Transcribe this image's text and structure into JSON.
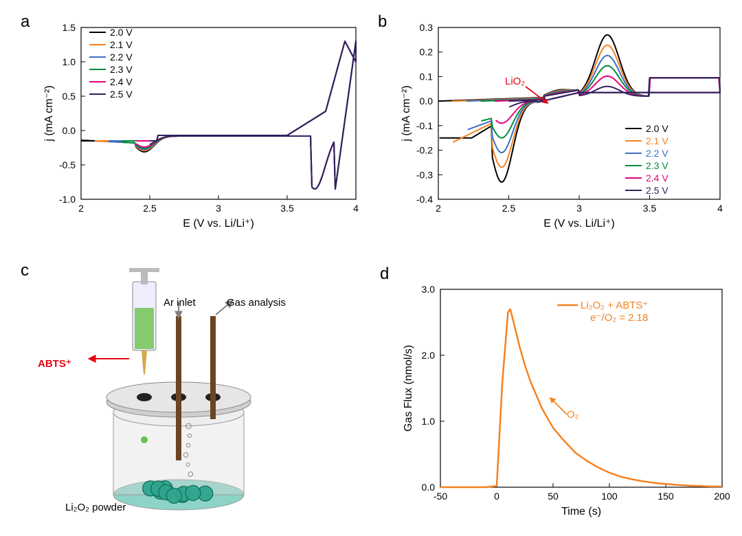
{
  "panelA": {
    "label": "a",
    "xlabel": "E (V vs. Li/Li⁺)",
    "ylabel": "j (mA cm⁻²)",
    "xlim": [
      2.0,
      4.0
    ],
    "ylim": [
      -1.0,
      1.5
    ],
    "xticks": [
      2.0,
      2.5,
      3.0,
      3.5,
      4.0
    ],
    "yticks": [
      -1.0,
      -0.5,
      0.0,
      0.5,
      1.0,
      1.5
    ],
    "background_color": "#ffffff",
    "axis_color": "#000000",
    "label_fontsize": 16,
    "tick_fontsize": 14,
    "line_width": 2,
    "legend_fontsize": 14,
    "series": [
      {
        "name": "2.0 V",
        "color": "#000000"
      },
      {
        "name": "2.1 V",
        "color": "#f58220"
      },
      {
        "name": "2.2 V",
        "color": "#3b6fc5"
      },
      {
        "name": "2.3 V",
        "color": "#008c3a"
      },
      {
        "name": "2.4 V",
        "color": "#e6007e"
      },
      {
        "name": "2.5 V",
        "color": "#2e2260"
      }
    ]
  },
  "panelB": {
    "label": "b",
    "xlabel": "E (V vs. Li/Li⁺)",
    "ylabel": "j (mA cm⁻²)",
    "xlim": [
      2.0,
      4.0
    ],
    "ylim": [
      -0.4,
      0.3
    ],
    "xticks": [
      2.0,
      2.5,
      3.0,
      3.5,
      4.0
    ],
    "yticks": [
      -0.4,
      -0.3,
      -0.2,
      -0.1,
      0.0,
      0.1,
      0.2,
      0.3
    ],
    "annotation": "LiO₂",
    "annotation_color": "#e30613",
    "background_color": "#ffffff",
    "axis_color": "#000000",
    "label_fontsize": 16,
    "tick_fontsize": 14,
    "line_width": 2,
    "legend_fontsize": 14,
    "series": [
      {
        "name": "2.0 V",
        "color": "#000000"
      },
      {
        "name": "2.1 V",
        "color": "#f58220"
      },
      {
        "name": "2.2 V",
        "color": "#3b6fc5"
      },
      {
        "name": "2.3 V",
        "color": "#008c3a"
      },
      {
        "name": "2.4 V",
        "color": "#e6007e"
      },
      {
        "name": "2.5 V",
        "color": "#2e2260"
      }
    ]
  },
  "panelC": {
    "label": "c",
    "abts_label": "ABTS⁺",
    "abts_color": "#e30613",
    "ar_label": "Ar inlet",
    "gas_label": "Gas analysis",
    "powder_label": "Li₂O₂ powder",
    "syringe_color": "#6bc04b",
    "liquid_color": "#8dd3c7",
    "vessel_color": "#d9d9d9",
    "tube_color": "#6b4423",
    "arrow_color": "#808080"
  },
  "panelD": {
    "label": "d",
    "xlabel": "Time (s)",
    "ylabel": "Gas Flux (nmol/s)",
    "xlim": [
      -50,
      200
    ],
    "ylim": [
      0.0,
      3.0
    ],
    "xticks": [
      -50,
      0,
      50,
      100,
      150,
      200
    ],
    "yticks": [
      0.0,
      1.0,
      2.0,
      3.0
    ],
    "line_color": "#f58220",
    "line_width": 2.5,
    "legend_text1": "Li₂O₂ + ABTS⁺",
    "legend_text2": "e⁻/O₂ = 2.18",
    "annotation": "O₂",
    "annotation_color": "#f58220",
    "background_color": "#ffffff",
    "axis_color": "#000000",
    "label_fontsize": 16,
    "tick_fontsize": 14,
    "data": [
      [
        -50,
        0
      ],
      [
        -10,
        0
      ],
      [
        0,
        0.02
      ],
      [
        5,
        1.6
      ],
      [
        10,
        2.65
      ],
      [
        12,
        2.7
      ],
      [
        15,
        2.5
      ],
      [
        20,
        2.15
      ],
      [
        25,
        1.85
      ],
      [
        30,
        1.6
      ],
      [
        40,
        1.2
      ],
      [
        50,
        0.9
      ],
      [
        60,
        0.7
      ],
      [
        70,
        0.52
      ],
      [
        80,
        0.4
      ],
      [
        90,
        0.3
      ],
      [
        100,
        0.22
      ],
      [
        110,
        0.16
      ],
      [
        120,
        0.12
      ],
      [
        130,
        0.09
      ],
      [
        140,
        0.065
      ],
      [
        150,
        0.05
      ],
      [
        160,
        0.035
      ],
      [
        170,
        0.025
      ],
      [
        180,
        0.018
      ],
      [
        190,
        0.012
      ],
      [
        200,
        0.01
      ]
    ]
  }
}
